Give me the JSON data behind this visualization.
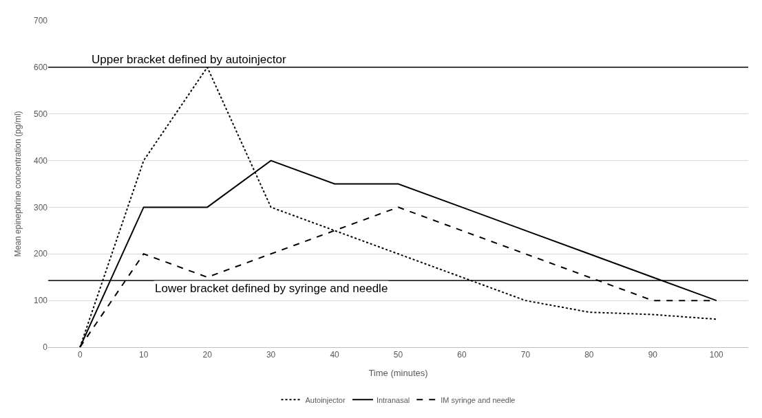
{
  "chart_data": {
    "type": "line",
    "xlabel": "Time (minutes)",
    "ylabel": "Mean epinephrine concentration (pg/ml)",
    "x": [
      0,
      10,
      20,
      30,
      40,
      50,
      60,
      70,
      80,
      90,
      100
    ],
    "xlim": [
      -5,
      105
    ],
    "xticks": [
      0,
      10,
      20,
      30,
      40,
      50,
      60,
      70,
      80,
      90,
      100
    ],
    "ylim": [
      0,
      700
    ],
    "yticks": [
      0,
      100,
      200,
      300,
      400,
      500,
      600,
      700
    ],
    "grid": "y",
    "legend": "bottom",
    "marker": "none",
    "series": [
      {
        "name": "Autoinjector",
        "color": "#000000",
        "line_style": "dotted",
        "values": [
          0,
          400,
          600,
          300,
          250,
          200,
          150,
          100,
          75,
          70,
          60
        ]
      },
      {
        "name": "Intranasal",
        "color": "#000000",
        "line_style": "solid",
        "values": [
          0,
          300,
          300,
          400,
          350,
          350,
          300,
          250,
          200,
          150,
          100
        ]
      },
      {
        "name": "IM syringe and needle",
        "color": "#000000",
        "line_style": "dashed",
        "values": [
          0,
          200,
          150,
          200,
          250,
          300,
          250,
          200,
          150,
          100,
          100
        ]
      }
    ],
    "ref_lines": [
      {
        "axis": "y",
        "value": 600,
        "label": "Upper bracket defined by autoinjector",
        "color": "#000000",
        "line_style": "solid"
      },
      {
        "axis": "y",
        "value": 143,
        "label": "Lower bracket defined by syringe and needle",
        "color": "#000000",
        "line_style": "solid"
      }
    ]
  }
}
